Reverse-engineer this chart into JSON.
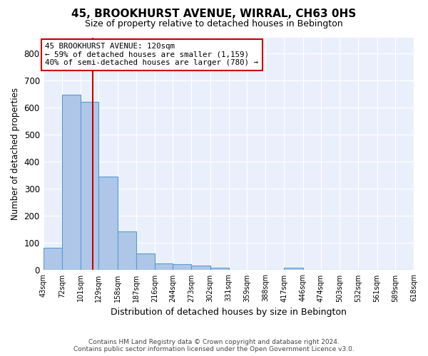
{
  "title": "45, BROOKHURST AVENUE, WIRRAL, CH63 0HS",
  "subtitle": "Size of property relative to detached houses in Bebington",
  "xlabel": "Distribution of detached houses by size in Bebington",
  "ylabel": "Number of detached properties",
  "bar_color": "#aec6e8",
  "bar_edge_color": "#5b9bd5",
  "background_color": "#eaf0fb",
  "grid_color": "#ffffff",
  "annotation_box_color": "#cc0000",
  "red_line_x": 120,
  "annotation_text": "45 BROOKHURST AVENUE: 120sqm\n← 59% of detached houses are smaller (1,159)\n40% of semi-detached houses are larger (780) →",
  "bins": [
    43,
    72,
    101,
    129,
    158,
    187,
    216,
    244,
    273,
    302,
    331,
    359,
    388,
    417,
    446,
    474,
    503,
    532,
    561,
    589,
    618
  ],
  "values": [
    83,
    648,
    623,
    345,
    144,
    62,
    25,
    22,
    17,
    10,
    0,
    0,
    0,
    8,
    0,
    0,
    0,
    0,
    0,
    0
  ],
  "ylim": [
    0,
    860
  ],
  "yticks": [
    0,
    100,
    200,
    300,
    400,
    500,
    600,
    700,
    800
  ],
  "footer": "Contains HM Land Registry data © Crown copyright and database right 2024.\nContains public sector information licensed under the Open Government Licence v3.0.",
  "figsize": [
    6.0,
    5.0
  ],
  "dpi": 100
}
